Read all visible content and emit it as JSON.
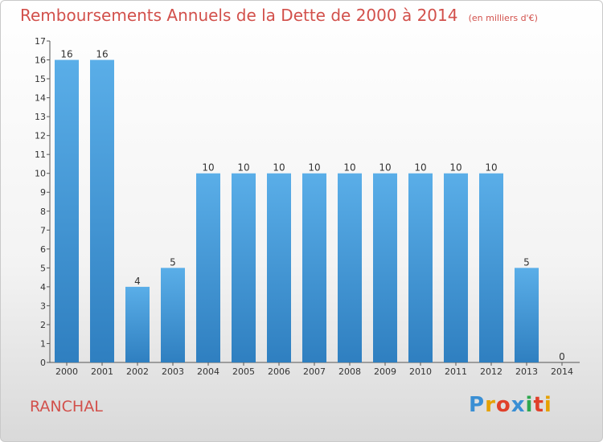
{
  "title": "Remboursements Annuels de la Dette de 2000 à 2014",
  "unit": "(en milliers d'€)",
  "commune": "RANCHAL",
  "logo": {
    "text": "Proxiti",
    "letters": [
      "P",
      "r",
      "o",
      "x",
      "i",
      "t",
      "i"
    ],
    "colors": [
      "#3a8fd4",
      "#e6a100",
      "#e0402a",
      "#3a8fd4",
      "#2fa84f",
      "#e0402a",
      "#e6a100"
    ]
  },
  "colors": {
    "title": "#d2504b",
    "bar_top": "#5aaee8",
    "bar_bottom": "#2f7fc0"
  },
  "chart_data": {
    "type": "bar",
    "categories": [
      "2000",
      "2001",
      "2002",
      "2003",
      "2004",
      "2005",
      "2006",
      "2007",
      "2008",
      "2009",
      "2010",
      "2011",
      "2012",
      "2013",
      "2014"
    ],
    "values": [
      16,
      16,
      4,
      5,
      10,
      10,
      10,
      10,
      10,
      10,
      10,
      10,
      10,
      5,
      0
    ],
    "yticks": [
      0,
      1,
      2,
      3,
      4,
      5,
      6,
      7,
      8,
      9,
      10,
      11,
      12,
      13,
      14,
      15,
      16,
      17
    ],
    "ylim": [
      0,
      17
    ],
    "grid": false,
    "data_labels": true
  }
}
